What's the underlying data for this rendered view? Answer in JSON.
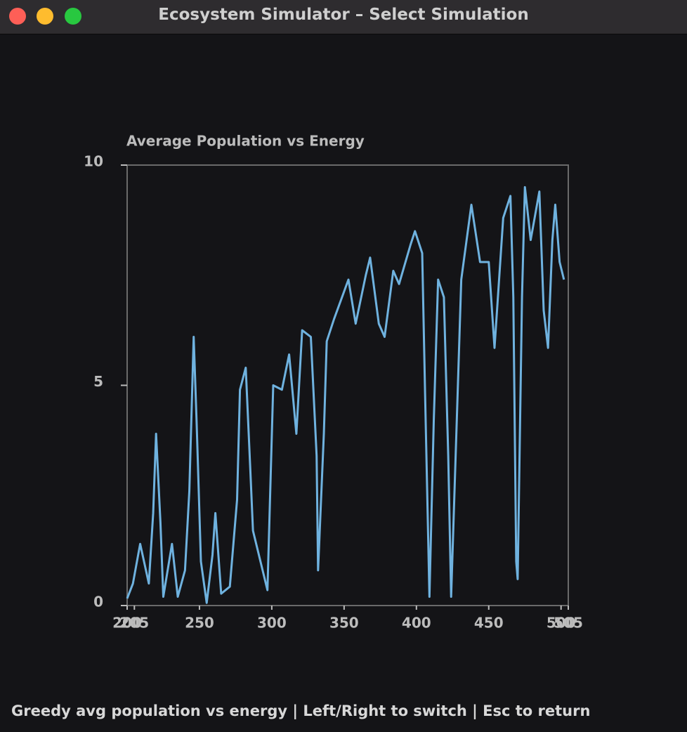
{
  "window": {
    "title": "Ecosystem Simulator – Select Simulation"
  },
  "chart_data": {
    "type": "line",
    "title": "Average Population vs Energy",
    "x": [
      200,
      204,
      209,
      215,
      218,
      220,
      223,
      225,
      231,
      235,
      240,
      243,
      246,
      248,
      251,
      255,
      259,
      261,
      265,
      271,
      276,
      278,
      282,
      285,
      287,
      297,
      301,
      307,
      312,
      317,
      321,
      327,
      331,
      332,
      336,
      338,
      343,
      353,
      358,
      365,
      368,
      374,
      378,
      384,
      388,
      396,
      399,
      404,
      406,
      409,
      412,
      415,
      419,
      422,
      424,
      428,
      431,
      438,
      444,
      450,
      454,
      460,
      465,
      467,
      469,
      470,
      473,
      475,
      479,
      485,
      488,
      491,
      494,
      496,
      499,
      502
    ],
    "values": [
      0.16,
      0.5,
      1.4,
      0.5,
      2.1,
      3.9,
      1.9,
      0.2,
      1.4,
      0.2,
      0.8,
      2.6,
      6.1,
      4.2,
      1.0,
      0.06,
      1.15,
      2.1,
      0.27,
      0.43,
      2.4,
      4.9,
      5.4,
      3.2,
      1.7,
      0.35,
      5.0,
      4.9,
      5.7,
      3.9,
      6.25,
      6.1,
      3.4,
      0.8,
      3.9,
      6.0,
      6.5,
      7.4,
      6.4,
      7.5,
      7.9,
      6.4,
      6.1,
      7.6,
      7.3,
      8.2,
      8.5,
      8.0,
      4.8,
      0.2,
      4.2,
      7.4,
      7.0,
      3.4,
      0.2,
      4.3,
      7.4,
      9.1,
      7.8,
      7.8,
      5.85,
      8.8,
      9.3,
      7.0,
      1.0,
      0.6,
      7.0,
      9.5,
      8.3,
      9.4,
      6.7,
      5.85,
      8.3,
      9.1,
      7.8,
      7.4
    ],
    "color": "#6fb2df",
    "xlim": [
      200,
      505
    ],
    "xticks": [
      200,
      205,
      250,
      300,
      350,
      400,
      450,
      500,
      505
    ],
    "ylim": [
      0,
      10
    ],
    "yticks": [
      0,
      5,
      10
    ]
  },
  "status_bar": "Greedy avg population vs energy | Left/Right to switch | Esc to return"
}
